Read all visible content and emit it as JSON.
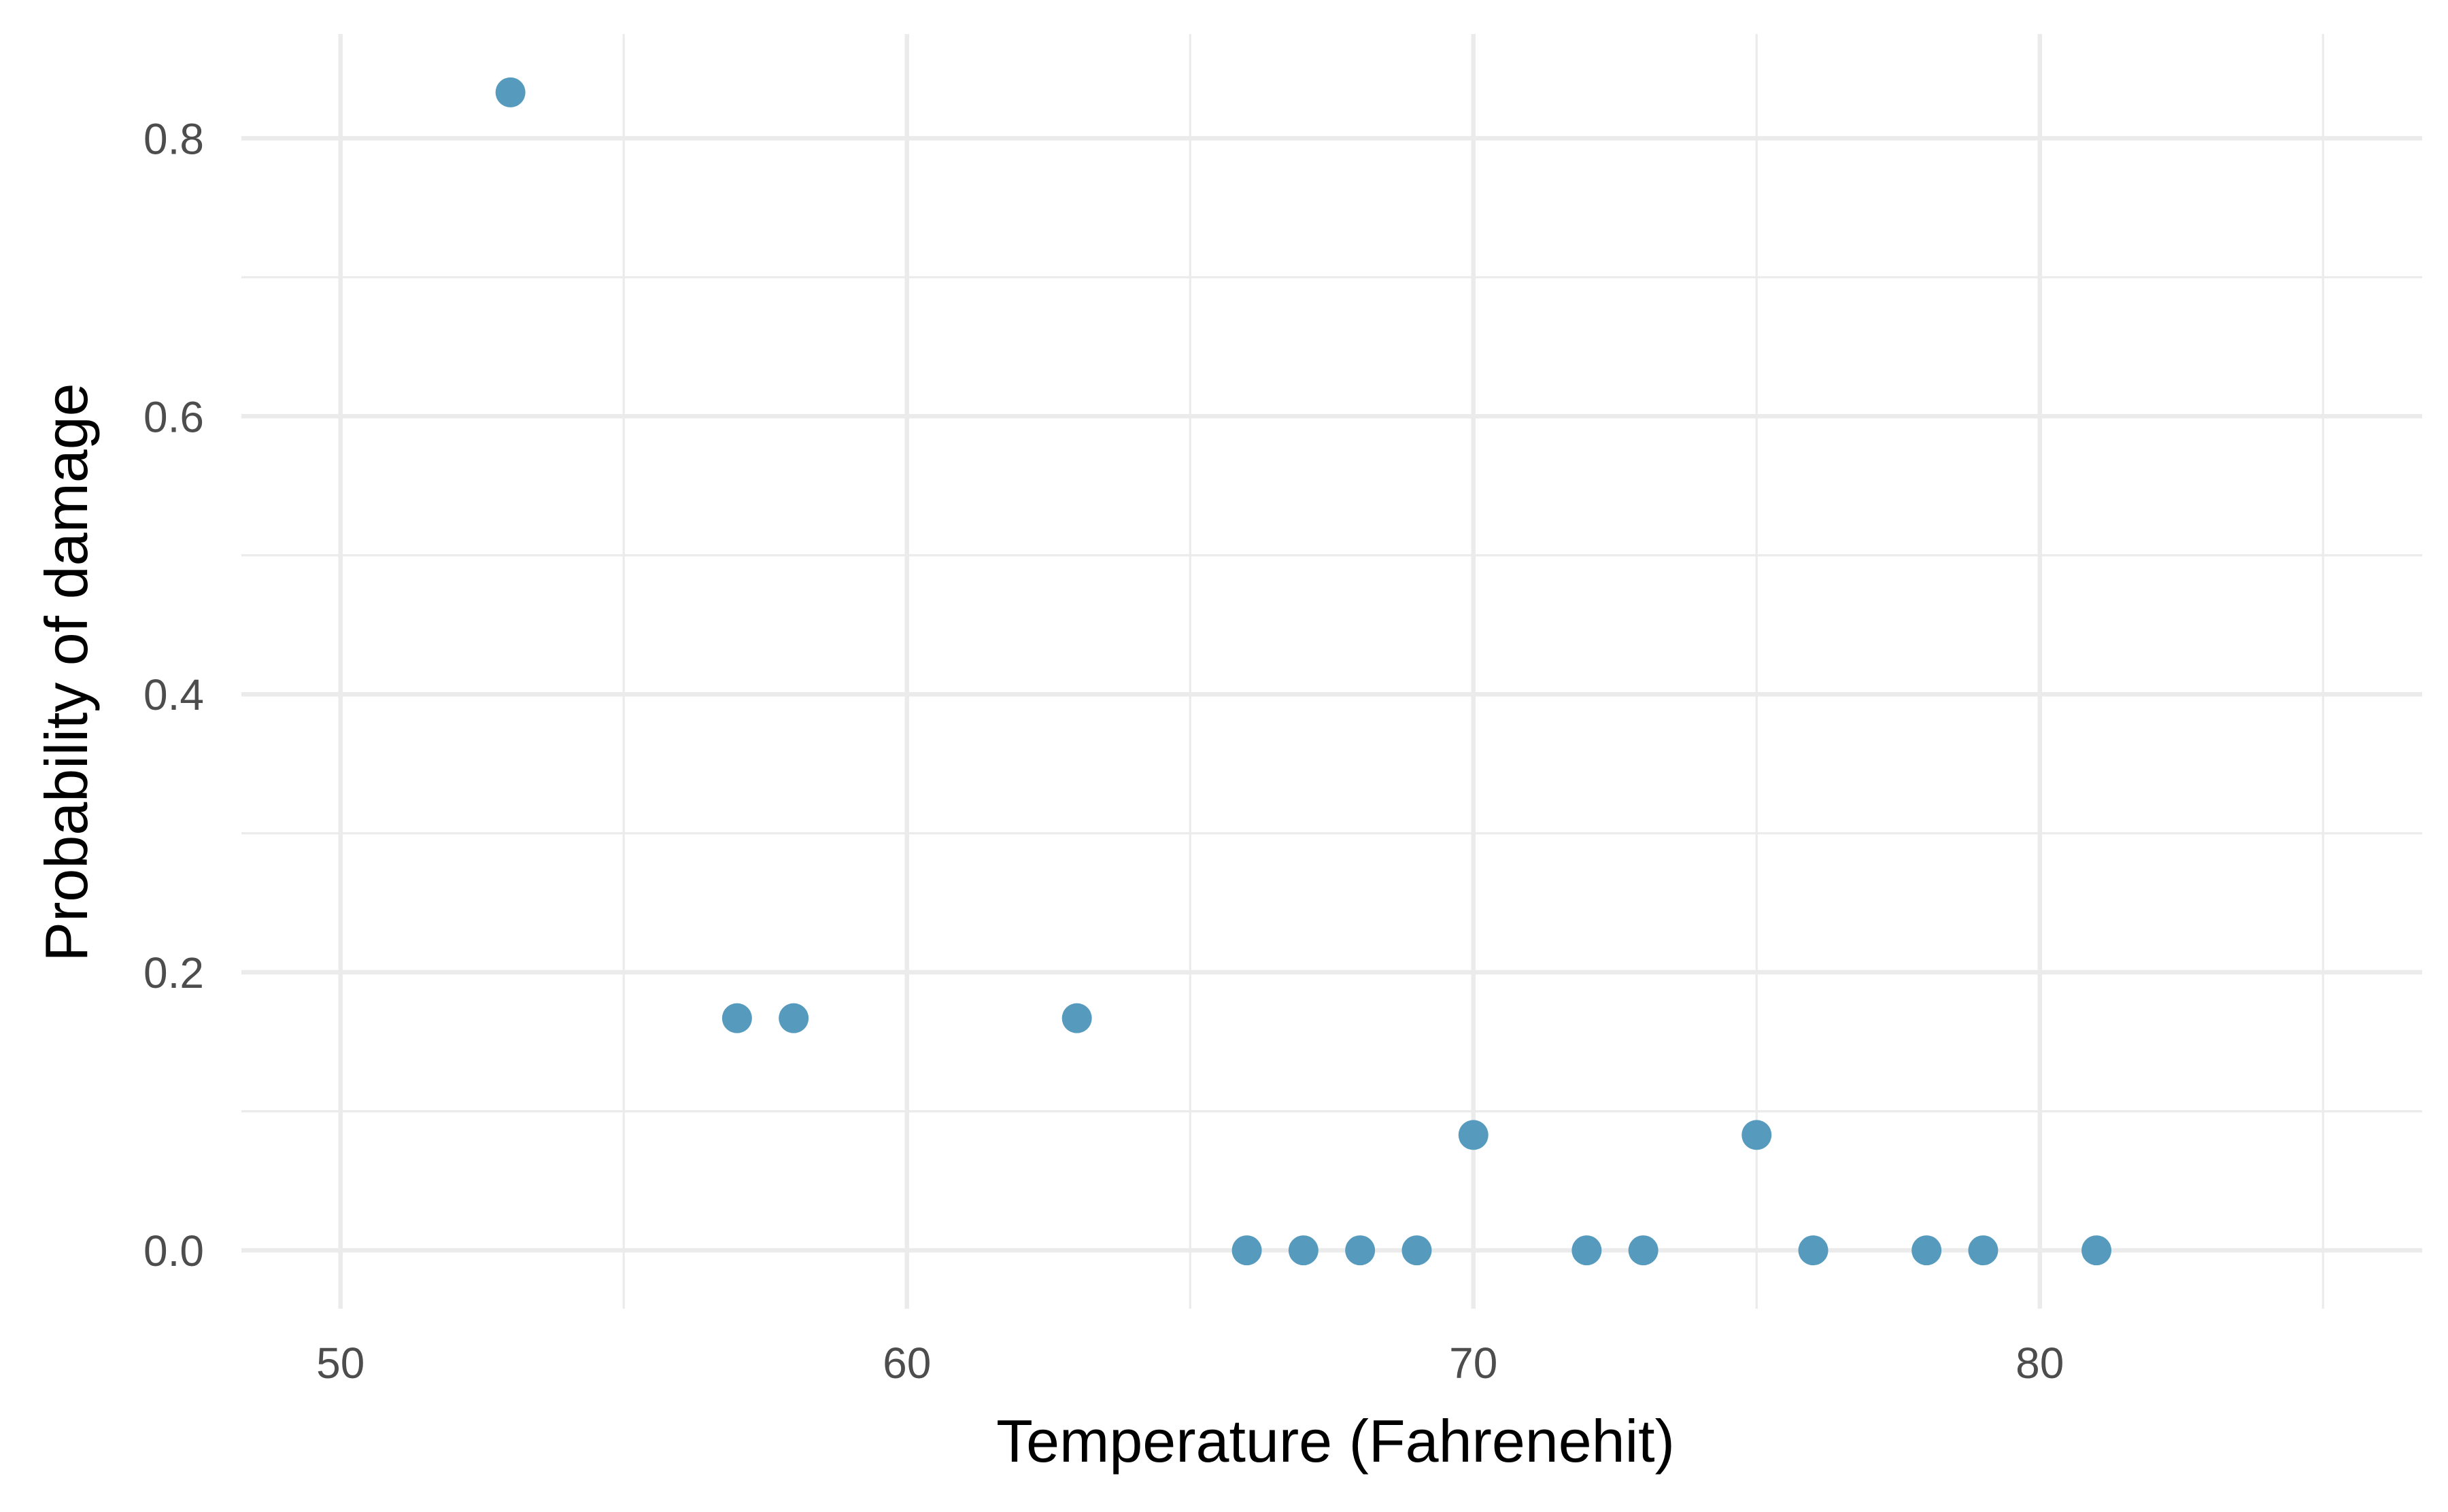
{
  "chart_data": {
    "type": "scatter",
    "title": "",
    "xlabel": "Temperature (Fahrenehit)",
    "ylabel": "Probability of damage",
    "xlim": [
      48.25,
      86.75
    ],
    "ylim": [
      -0.042,
      0.875
    ],
    "x_ticks": [
      50,
      60,
      70,
      80
    ],
    "x_tick_labels": [
      "50",
      "60",
      "70",
      "80"
    ],
    "x_minor_ticks": [
      55,
      65,
      75,
      85
    ],
    "y_ticks": [
      0.0,
      0.2,
      0.4,
      0.6,
      0.8
    ],
    "y_tick_labels": [
      "0.0",
      "0.2",
      "0.4",
      "0.6",
      "0.8"
    ],
    "y_minor_ticks": [
      0.1,
      0.3,
      0.5,
      0.7
    ],
    "grid": true,
    "legend": "none",
    "point_color": "#569BBD",
    "points": [
      {
        "x": 53,
        "y": 0.833
      },
      {
        "x": 57,
        "y": 0.167
      },
      {
        "x": 58,
        "y": 0.167
      },
      {
        "x": 63,
        "y": 0.167
      },
      {
        "x": 66,
        "y": 0.0
      },
      {
        "x": 67,
        "y": 0.0
      },
      {
        "x": 68,
        "y": 0.0
      },
      {
        "x": 69,
        "y": 0.0
      },
      {
        "x": 70,
        "y": 0.083
      },
      {
        "x": 72,
        "y": 0.0
      },
      {
        "x": 73,
        "y": 0.0
      },
      {
        "x": 75,
        "y": 0.083
      },
      {
        "x": 76,
        "y": 0.0
      },
      {
        "x": 78,
        "y": 0.0
      },
      {
        "x": 79,
        "y": 0.0
      },
      {
        "x": 81,
        "y": 0.0
      }
    ]
  }
}
